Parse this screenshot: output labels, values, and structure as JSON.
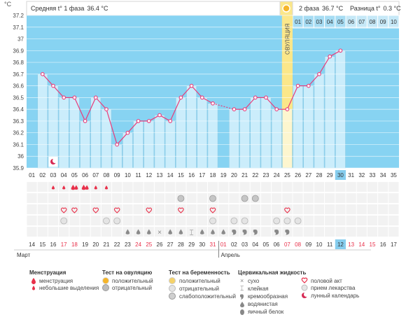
{
  "header": {
    "y_unit": "°C",
    "phase1_label": "Средняя t° 1 фаза",
    "phase1_value": "36.4 °C",
    "phase2_label": "2 фаза",
    "phase2_value": "36.7 °C",
    "diff_label": "Разница t°",
    "diff_value": "0.3 °C"
  },
  "ovulation_label": "ОВУЛЯЦИЯ",
  "chart_data": {
    "type": "line",
    "title": "",
    "xlabel": "",
    "ylabel": "°C",
    "ylim": [
      35.9,
      37.2
    ],
    "y_ticks": [
      "35.9",
      "36",
      "36.1",
      "36.2",
      "36.3",
      "36.4",
      "36.5",
      "36.6",
      "36.7",
      "36.8",
      "36.9",
      "37",
      "37.1",
      "37.2"
    ],
    "cycle_days": [
      "01",
      "02",
      "03",
      "04",
      "05",
      "06",
      "07",
      "08",
      "09",
      "10",
      "11",
      "12",
      "13",
      "14",
      "15",
      "16",
      "17",
      "18",
      "19",
      "20",
      "21",
      "22",
      "23",
      "24",
      "25",
      "26",
      "27",
      "28",
      "29",
      "30",
      "31",
      "32",
      "33",
      "34",
      "35"
    ],
    "phase2_days": [
      "01",
      "02",
      "03",
      "04",
      "05",
      "06",
      "07",
      "08",
      "09",
      "10"
    ],
    "ovulation_day": "25",
    "current_day": "30",
    "series": [
      {
        "values": [
          null,
          36.7,
          36.6,
          36.5,
          36.5,
          36.3,
          36.5,
          36.4,
          36.1,
          36.2,
          36.3,
          36.3,
          36.35,
          36.3,
          36.5,
          36.6,
          36.5,
          36.45,
          null,
          36.4,
          36.4,
          36.5,
          36.5,
          36.4,
          36.4,
          36.6,
          36.6,
          36.7,
          36.85,
          36.9,
          null,
          null,
          null,
          null,
          null
        ],
        "interpolated_days": [
          "19"
        ]
      }
    ]
  },
  "tracking_rows": {
    "menstruation": {
      "03": "small",
      "04": "small",
      "05": "full",
      "06": "full",
      "07": "small",
      "08": "small"
    },
    "ovulation_test": {
      "15": "negative",
      "18": "negative",
      "21": "negative",
      "22": "negative"
    },
    "intercourse_days": [
      "04",
      "05",
      "07",
      "09",
      "12",
      "15",
      "18",
      "25"
    ],
    "pregnancy_test_days": [
      "04",
      "08",
      "09",
      "18",
      "20",
      "21",
      "24",
      "25",
      "26"
    ],
    "cervical_fluid": {
      "10": "watery",
      "11": "watery",
      "12": "watery",
      "13": "dry",
      "14": "watery",
      "15": "watery",
      "16": "sticky",
      "17": "watery",
      "18": "watery",
      "19": "watery",
      "20": "creamy",
      "21": "creamy",
      "22": "creamy",
      "24": "creamy",
      "25": "creamy"
    }
  },
  "calendar": {
    "dates": [
      {
        "d": "14",
        "red": false
      },
      {
        "d": "15",
        "red": false
      },
      {
        "d": "16",
        "red": false
      },
      {
        "d": "17",
        "red": true
      },
      {
        "d": "18",
        "red": true
      },
      {
        "d": "19",
        "red": false
      },
      {
        "d": "20",
        "red": false
      },
      {
        "d": "21",
        "red": false
      },
      {
        "d": "22",
        "red": false
      },
      {
        "d": "23",
        "red": false
      },
      {
        "d": "24",
        "red": true
      },
      {
        "d": "25",
        "red": true
      },
      {
        "d": "26",
        "red": false
      },
      {
        "d": "27",
        "red": false
      },
      {
        "d": "28",
        "red": false
      },
      {
        "d": "29",
        "red": false
      },
      {
        "d": "30",
        "red": false
      },
      {
        "d": "31",
        "red": true
      },
      {
        "d": "01",
        "red": true
      },
      {
        "d": "02",
        "red": false
      },
      {
        "d": "03",
        "red": false
      },
      {
        "d": "04",
        "red": false
      },
      {
        "d": "05",
        "red": false
      },
      {
        "d": "06",
        "red": false
      },
      {
        "d": "07",
        "red": true
      },
      {
        "d": "08",
        "red": true
      },
      {
        "d": "09",
        "red": false
      },
      {
        "d": "10",
        "red": false
      },
      {
        "d": "11",
        "red": false
      },
      {
        "d": "12",
        "red": false
      },
      {
        "d": "13",
        "red": true
      },
      {
        "d": "14",
        "red": true
      },
      {
        "d": "15",
        "red": true
      },
      {
        "d": "16",
        "red": false
      },
      {
        "d": "17",
        "red": false
      }
    ],
    "month1": "Март",
    "month2": "Апрель"
  },
  "legend": {
    "menstruation": {
      "title": "Менструация",
      "items": [
        "менструация",
        "небольшие выделения"
      ]
    },
    "ovulation_test": {
      "title": "Тест на овуляцию",
      "items": [
        "положительный",
        "отрицательный"
      ]
    },
    "pregnancy_test": {
      "title": "Тест на беременность",
      "items": [
        "положительный",
        "отрицательный",
        "слабоположительный"
      ]
    },
    "cervical": {
      "title": "Цервикальная жидкость",
      "items": [
        "сухо",
        "клейкая",
        "кремообразная",
        "водянистая",
        "яичный белок"
      ]
    },
    "other": {
      "items": [
        "половой акт",
        "прием лекарства",
        "лунный календарь"
      ]
    }
  },
  "colors": {
    "background_blue": "#87d3f2",
    "bar_fill": "#cbedfb",
    "bar_stroke": "#8ccbe6",
    "line": "#e83c7a",
    "ovulation_band": "#fbe78a",
    "grid": "#ffffff",
    "red_text": "#e8304a",
    "current_cell": "#86cdee"
  }
}
